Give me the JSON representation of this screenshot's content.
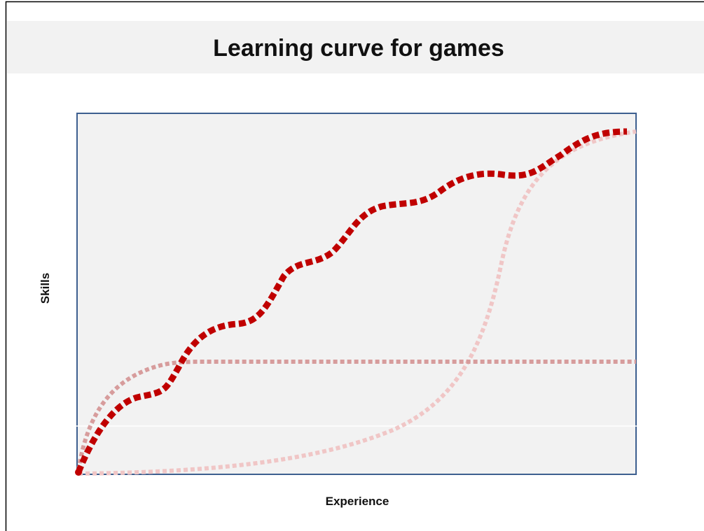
{
  "header": {
    "title": "Learning curve for games"
  },
  "diagram": {
    "y_label": "Skills",
    "x_label": "Experience"
  }
}
